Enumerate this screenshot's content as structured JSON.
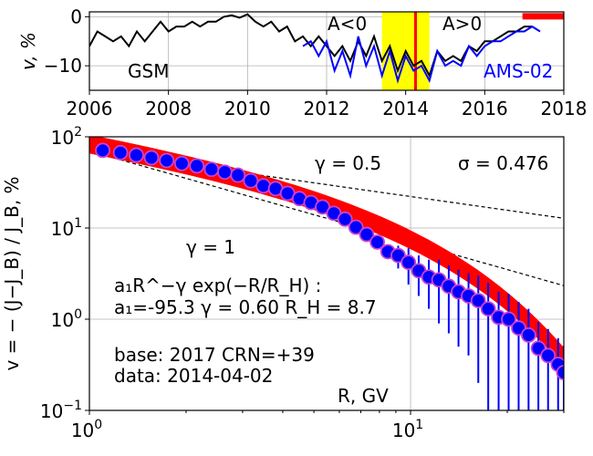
{
  "chart_data": [
    {
      "type": "line",
      "ylabel": "v, %",
      "xlim": [
        2006,
        2018
      ],
      "ylim": [
        -15,
        1
      ],
      "yscale": "linear",
      "xticks": [
        "2006",
        "2008",
        "2010",
        "2012",
        "2014",
        "2016",
        "2018"
      ],
      "xtick_values": [
        2006,
        2008,
        2010,
        2012,
        2014,
        2016,
        2018
      ],
      "yticks": [
        "0",
        "−10"
      ],
      "ytick_values": [
        0,
        -10
      ],
      "grid": true,
      "annotations": {
        "gsm": "GSM",
        "neg": "A<0",
        "pos": "A>0",
        "ams": "AMS-02"
      },
      "shaded_interval": {
        "from": 2013.4,
        "to": 2014.6,
        "color": "#ffff00"
      },
      "vertical_marker": {
        "x": 2014.25,
        "color": "#ff0000"
      },
      "reference_bar": {
        "from": 2017.0,
        "to": 2018.0,
        "y": 0,
        "color": "#ff0000"
      },
      "series": [
        {
          "name": "GSM",
          "color": "#000000",
          "x": [
            2006.0,
            2006.2,
            2006.4,
            2006.6,
            2006.8,
            2007.0,
            2007.2,
            2007.4,
            2007.6,
            2007.8,
            2008.0,
            2008.2,
            2008.4,
            2008.6,
            2008.8,
            2009.0,
            2009.2,
            2009.4,
            2009.6,
            2009.8,
            2010.0,
            2010.2,
            2010.4,
            2010.6,
            2010.8,
            2011.0,
            2011.2,
            2011.4,
            2011.6,
            2011.8,
            2012.0,
            2012.2,
            2012.4,
            2012.6,
            2012.8,
            2013.0,
            2013.2,
            2013.4,
            2013.6,
            2013.8,
            2014.0,
            2014.2,
            2014.4,
            2014.6,
            2014.8,
            2015.0,
            2015.2,
            2015.4,
            2015.6,
            2015.8,
            2016.0,
            2016.2,
            2016.4,
            2016.6,
            2016.8,
            2017.0,
            2017.2
          ],
          "values": [
            -6,
            -3,
            -4,
            -5,
            -4,
            -6,
            -3,
            -5,
            -3,
            -1,
            -3,
            -2,
            -2,
            -1,
            -2,
            -1,
            -1,
            0,
            0.3,
            -0.2,
            0.5,
            -1,
            -2,
            -1,
            -3,
            -2,
            -5,
            -4,
            -6,
            -4,
            -6,
            -8,
            -6,
            -9,
            -5,
            -8,
            -4,
            -9,
            -6,
            -11,
            -7,
            -10,
            -9,
            -12,
            -7,
            -9,
            -8,
            -9,
            -6,
            -7,
            -5,
            -5,
            -4,
            -3,
            -3,
            -2,
            -2
          ]
        },
        {
          "name": "AMS-02",
          "color": "#0000ff",
          "x": [
            2011.4,
            2011.6,
            2011.8,
            2012.0,
            2012.2,
            2012.4,
            2012.6,
            2012.8,
            2013.0,
            2013.2,
            2013.4,
            2013.6,
            2013.8,
            2014.0,
            2014.2,
            2014.4,
            2014.6,
            2014.8,
            2015.0,
            2015.2,
            2015.4,
            2015.6,
            2015.8,
            2016.0,
            2016.2,
            2016.4,
            2016.6,
            2016.8,
            2017.0,
            2017.2,
            2017.4
          ],
          "values": [
            -6,
            -5,
            -8,
            -5,
            -11,
            -7,
            -12,
            -4,
            -10,
            -6,
            -12,
            -7,
            -13,
            -8,
            -11,
            -10,
            -13,
            -7,
            -10,
            -9,
            -10,
            -6,
            -8,
            -6,
            -5,
            -5,
            -4,
            -3,
            -3,
            -2,
            -3
          ]
        }
      ]
    },
    {
      "type": "scatter",
      "xlabel": "R, GV",
      "ylabel": "v = − (J−J_B) / J_B, %",
      "xscale": "log",
      "yscale": "log",
      "xlim": [
        1,
        30
      ],
      "ylim": [
        0.1,
        100
      ],
      "xtick_labels": [
        {
          "base": "10",
          "exp": "0"
        },
        {
          "base": "10",
          "exp": "1"
        }
      ],
      "xtick_values": [
        1,
        10
      ],
      "ytick_labels": [
        {
          "base": "10",
          "exp": "−1"
        },
        {
          "base": "10",
          "exp": "0"
        },
        {
          "base": "10",
          "exp": "1"
        },
        {
          "base": "10",
          "exp": "2"
        }
      ],
      "ytick_values": [
        0.1,
        1,
        10,
        100
      ],
      "grid": true,
      "annotations": {
        "gamma_half": "γ = 0.5",
        "gamma_one": "γ = 1",
        "sigma": "σ = 0.476",
        "formula": "a₁R^−γ exp(−R/R_H) :",
        "params": "a₁=-95.3  γ = 0.60  R_H =  8.7",
        "base": "base: 2017   CRN=+39",
        "date": "data: 2014-04-02"
      },
      "fit": {
        "a1": -95.3,
        "gamma": 0.6,
        "RH": 8.7,
        "sigma": 0.476,
        "color": "#ff0000"
      },
      "reference_lines": [
        {
          "gamma": 0.5,
          "anchor_R": 1.0,
          "anchor_v": 70
        },
        {
          "gamma": 1.0,
          "anchor_R": 1.0,
          "anchor_v": 70
        }
      ],
      "series": [
        {
          "name": "data",
          "color": "#0000ff",
          "edge": "#cc44cc",
          "x": [
            1.1,
            1.25,
            1.4,
            1.56,
            1.74,
            1.94,
            2.16,
            2.4,
            2.64,
            2.9,
            3.18,
            3.48,
            3.8,
            4.14,
            4.51,
            4.9,
            5.32,
            5.77,
            6.25,
            6.76,
            7.3,
            7.88,
            8.5,
            9.15,
            9.85,
            10.6,
            11.4,
            12.25,
            13.15,
            14.1,
            15.15,
            16.25,
            17.45,
            18.8,
            20.2,
            21.7,
            23.3,
            25.0,
            26.8,
            28.8,
            30.0
          ],
          "values": [
            71,
            67,
            63,
            59,
            55,
            51,
            48,
            44,
            41,
            38,
            33,
            29,
            27,
            24,
            21,
            19,
            17,
            14.5,
            12.5,
            10.2,
            8.5,
            7.0,
            5.5,
            5.0,
            4.2,
            3.4,
            2.9,
            2.7,
            2.3,
            2.0,
            1.8,
            1.6,
            1.3,
            1.05,
            1.0,
            0.8,
            0.67,
            0.48,
            0.4,
            0.32,
            0.26
          ],
          "errors": [
            3,
            2.5,
            2.5,
            2,
            2,
            2,
            2,
            2,
            1.8,
            1.8,
            1.6,
            1.5,
            1.4,
            1.3,
            1.2,
            1.1,
            1.0,
            1.0,
            0.9,
            0.8,
            0.8,
            0.7,
            0.9,
            1.4,
            1.8,
            1.6,
            1.6,
            1.8,
            1.6,
            1.5,
            1.4,
            1.4,
            1.2,
            0.95,
            0.9,
            0.75,
            0.63,
            0.45,
            0.38,
            0.3,
            0.25
          ]
        }
      ]
    }
  ]
}
